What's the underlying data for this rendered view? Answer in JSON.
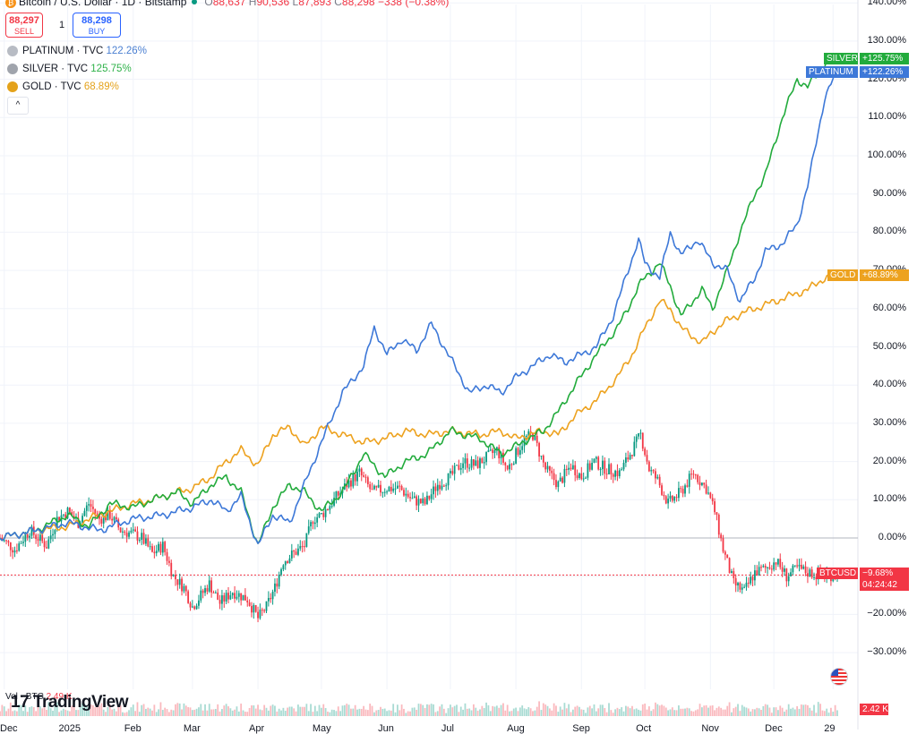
{
  "header": {
    "symbol_title": "Bitcoin / U.S. Dollar · 1D · Bitstamp",
    "btc_icon": "bitcoin-icon",
    "ohlc": {
      "o_label": "O",
      "o": "88,637",
      "h_label": "H",
      "h": "90,536",
      "l_label": "L",
      "l": "87,893",
      "c_label": "C",
      "c": "88,298",
      "change": "−338 (−0.38%)"
    }
  },
  "trade": {
    "sell_price": "88,297",
    "sell_label": "SELL",
    "spread": "1",
    "buy_price": "88,298",
    "buy_label": "BUY"
  },
  "legend": [
    {
      "name": "PLATINUM · TVC",
      "value": "122.26%",
      "color": "#4a7fd1",
      "icon": "platinum-icon"
    },
    {
      "name": "SILVER · TVC",
      "value": "125.75%",
      "color": "#2fb24a",
      "icon": "silver-icon"
    },
    {
      "name": "GOLD · TVC",
      "value": "68.89%",
      "color": "#e4a21a",
      "icon": "gold-icon"
    }
  ],
  "collapse_icon": "chevron-up-icon",
  "price_tags": [
    {
      "name": "SILVER",
      "value": "+125.75%",
      "color": "#22ab3c"
    },
    {
      "name": "PLATINUM",
      "value": "+122.26%",
      "color": "#3d78d8"
    },
    {
      "name": "GOLD",
      "value": "+68.89%",
      "color": "#eda21f"
    },
    {
      "name": "BTCUSD",
      "value": "−9.68%",
      "countdown": "04:24:42",
      "color": "#f23645"
    }
  ],
  "volume": {
    "label": "Vol · BTC",
    "value": "2.49 K",
    "tag": "2.42 K"
  },
  "branding": {
    "logo_text": "TradingView",
    "logo_mark": "17"
  },
  "flag_icon": "us-flag-icon",
  "chart_data": {
    "type": "line",
    "title": "",
    "ylabel": "",
    "yscale": "percent",
    "ylim": [
      -35,
      140
    ],
    "y_ticks": [
      "140.00%",
      "130.00%",
      "120.00%",
      "110.00%",
      "100.00%",
      "90.00%",
      "80.00%",
      "70.00%",
      "60.00%",
      "50.00%",
      "40.00%",
      "30.00%",
      "20.00%",
      "10.00%",
      "0.00%",
      "−10.00%",
      "−20.00%",
      "−30.00%"
    ],
    "y_tick_values": [
      140,
      130,
      120,
      110,
      100,
      90,
      80,
      70,
      60,
      50,
      40,
      30,
      20,
      10,
      0,
      -10,
      -20,
      -30
    ],
    "x_tick_labels": [
      "Dec",
      "2025",
      "Feb",
      "Mar",
      "Apr",
      "May",
      "Jun",
      "Jul",
      "Aug",
      "Sep",
      "Oct",
      "Nov",
      "Dec",
      "29"
    ],
    "x_tick_positions_day": [
      -30,
      0,
      31,
      59,
      90,
      120,
      151,
      181,
      212,
      243,
      273,
      304,
      334,
      362
    ],
    "x_range_days": [
      -32,
      364
    ],
    "series": [
      {
        "name": "GOLD",
        "color": "#eda21f",
        "x": [
          -32,
          -15,
          0,
          15,
          31,
          40,
          52,
          59,
          68,
          75,
          82,
          90,
          97,
          105,
          112,
          120,
          130,
          140,
          150,
          160,
          170,
          181,
          195,
          205,
          212,
          218,
          225,
          232,
          240,
          250,
          260,
          268,
          273,
          280,
          285,
          290,
          300,
          305,
          312,
          320,
          330,
          340,
          350,
          358,
          364
        ],
        "values": [
          0,
          2,
          3,
          6,
          9,
          10,
          12,
          13,
          16,
          20,
          23,
          19,
          27,
          29,
          24,
          29,
          27,
          25,
          26,
          28,
          27,
          28,
          27,
          28,
          26,
          27,
          28,
          27,
          32,
          36,
          42,
          49,
          55,
          62,
          60,
          55,
          51,
          54,
          57,
          59,
          61,
          63,
          65,
          68,
          68.89
        ]
      },
      {
        "name": "SILVER",
        "color": "#22ab3c",
        "x": [
          -32,
          -15,
          0,
          10,
          20,
          31,
          40,
          52,
          59,
          68,
          75,
          82,
          90,
          97,
          105,
          112,
          120,
          130,
          140,
          150,
          160,
          170,
          181,
          195,
          205,
          212,
          218,
          225,
          232,
          240,
          250,
          260,
          265,
          270,
          273,
          280,
          285,
          290,
          300,
          305,
          312,
          318,
          325,
          330,
          338,
          345,
          350,
          358,
          364
        ],
        "values": [
          0,
          2,
          6,
          3,
          9,
          8,
          10,
          12,
          9,
          14,
          16,
          12,
          -2,
          8,
          14,
          12,
          7,
          12,
          22,
          16,
          20,
          22,
          28,
          26,
          22,
          24,
          26,
          28,
          33,
          40,
          48,
          55,
          60,
          66,
          68,
          72,
          66,
          58,
          65,
          60,
          70,
          80,
          90,
          95,
          110,
          120,
          118,
          124,
          125.75
        ]
      },
      {
        "name": "PLATINUM",
        "color": "#3d78d8",
        "x": [
          -32,
          -15,
          0,
          15,
          31,
          45,
          59,
          68,
          75,
          82,
          90,
          97,
          105,
          112,
          120,
          130,
          140,
          145,
          151,
          158,
          165,
          172,
          181,
          190,
          198,
          205,
          212,
          220,
          228,
          235,
          243,
          250,
          258,
          265,
          270,
          273,
          280,
          285,
          290,
          298,
          305,
          312,
          318,
          325,
          330,
          338,
          345,
          350,
          358,
          364
        ],
        "values": [
          0,
          2,
          4,
          2,
          5,
          6,
          8,
          10,
          7,
          11,
          -2,
          6,
          4,
          14,
          25,
          38,
          45,
          55,
          48,
          52,
          49,
          56,
          47,
          38,
          40,
          38,
          42,
          45,
          48,
          46,
          48,
          50,
          58,
          70,
          78,
          72,
          68,
          80,
          74,
          78,
          72,
          70,
          62,
          68,
          75,
          77,
          82,
          92,
          115,
          122.26
        ]
      }
    ],
    "ohlc_series": {
      "name": "BTCUSD",
      "up_color": "#089981",
      "down_color": "#f23645",
      "x": [
        -32,
        -25,
        -18,
        -10,
        -5,
        0,
        5,
        10,
        15,
        20,
        25,
        31,
        35,
        40,
        45,
        50,
        55,
        59,
        63,
        67,
        72,
        78,
        85,
        90,
        94,
        98,
        102,
        107,
        112,
        116,
        120,
        126,
        132,
        138,
        144,
        151,
        157,
        163,
        169,
        175,
        181,
        187,
        193,
        198,
        203,
        208,
        212,
        216,
        220,
        226,
        232,
        238,
        243,
        249,
        255,
        261,
        267,
        271,
        275,
        279,
        284,
        290,
        296,
        302,
        306,
        310,
        315,
        320,
        325,
        330,
        335,
        340,
        345,
        350,
        355,
        362
      ],
      "close": [
        0,
        -3,
        2,
        -2,
        5,
        7,
        4,
        9,
        5,
        6,
        2,
        1,
        0,
        -4,
        -2,
        -10,
        -13,
        -18,
        -15,
        -12,
        -17,
        -14,
        -16,
        -21,
        -18,
        -13,
        -6,
        -4,
        -2,
        5,
        6,
        10,
        14,
        17,
        12,
        13,
        13,
        10,
        9,
        14,
        16,
        20,
        19,
        21,
        23,
        18,
        22,
        26,
        27,
        18,
        14,
        19,
        16,
        20,
        18,
        17,
        23,
        27,
        18,
        15,
        9,
        12,
        17,
        13,
        7,
        -3,
        -12,
        -14,
        -9,
        -8,
        -6,
        -10,
        -8,
        -9,
        -9.68,
        -9.68
      ]
    },
    "baseline": 0,
    "last_btc": -9.68
  }
}
